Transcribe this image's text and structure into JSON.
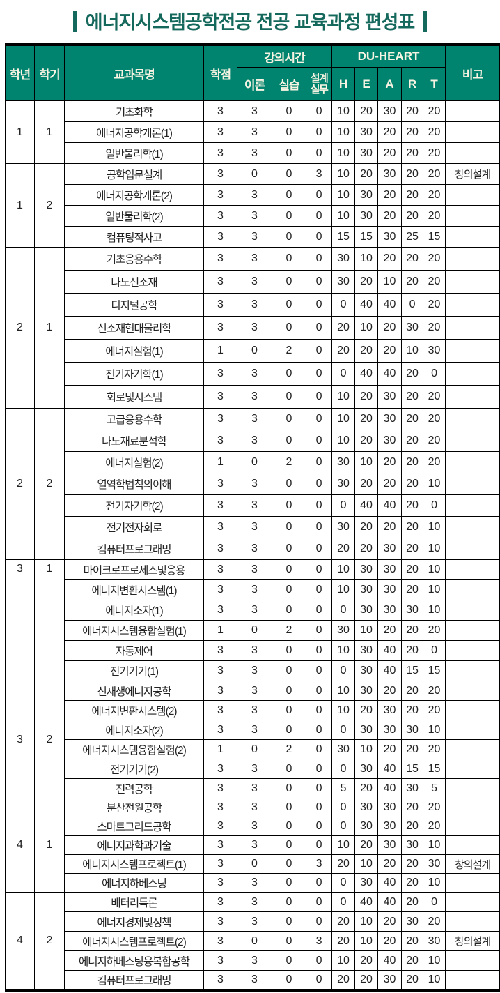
{
  "title": {
    "text": "에너지시스템공학전공 전공 교육과정 편성표"
  },
  "colors": {
    "header_background": "#00836F",
    "title_text": "#15685C",
    "header_text": "#F8F4E3",
    "grid_border": "#000000"
  },
  "table": {
    "headers": {
      "year": "학년",
      "semester": "학기",
      "course_name": "교과목명",
      "credits": "학점",
      "lecture_hours": "강의시간",
      "theory": "이론",
      "practice": "실습",
      "design_line1": "설계",
      "design_line2": "실무",
      "du_heart": "DU-HEART",
      "heart_letters": [
        "H",
        "E",
        "A",
        "R",
        "T"
      ],
      "note": "비고"
    },
    "sections": [
      {
        "year": 1,
        "semester": 1,
        "courses": [
          {
            "name": "기초화학",
            "credits": 3,
            "theory": 3,
            "practice": 0,
            "design": 0,
            "heart": [
              10,
              20,
              30,
              20,
              20
            ],
            "note": ""
          },
          {
            "name": "에너지공학개론(1)",
            "credits": 3,
            "theory": 3,
            "practice": 0,
            "design": 0,
            "heart": [
              10,
              30,
              20,
              20,
              20
            ],
            "note": ""
          },
          {
            "name": "일반물리학(1)",
            "credits": 3,
            "theory": 3,
            "practice": 0,
            "design": 0,
            "heart": [
              10,
              30,
              20,
              20,
              20
            ],
            "note": ""
          }
        ]
      },
      {
        "year": 1,
        "semester": 2,
        "courses": [
          {
            "name": "공학입문설계",
            "credits": 3,
            "theory": 0,
            "practice": 0,
            "design": 3,
            "heart": [
              10,
              20,
              30,
              20,
              20
            ],
            "note": "창의설계"
          },
          {
            "name": "에너지공학개론(2)",
            "credits": 3,
            "theory": 3,
            "practice": 0,
            "design": 0,
            "heart": [
              10,
              30,
              20,
              20,
              20
            ],
            "note": ""
          },
          {
            "name": "일반물리학(2)",
            "credits": 3,
            "theory": 3,
            "practice": 0,
            "design": 0,
            "heart": [
              10,
              30,
              20,
              20,
              20
            ],
            "note": ""
          },
          {
            "name": "컴퓨팅적사고",
            "credits": 3,
            "theory": 3,
            "practice": 0,
            "design": 0,
            "heart": [
              15,
              15,
              30,
              25,
              15
            ],
            "note": ""
          }
        ]
      },
      {
        "year": 2,
        "semester": 1,
        "courses": [
          {
            "name": "기초응용수학",
            "credits": 3,
            "theory": 3,
            "practice": 0,
            "design": 0,
            "heart": [
              30,
              10,
              20,
              20,
              20
            ],
            "note": ""
          },
          {
            "name": "나노신소재",
            "credits": 3,
            "theory": 3,
            "practice": 0,
            "design": 0,
            "heart": [
              30,
              20,
              10,
              20,
              20
            ],
            "note": ""
          },
          {
            "name": "디지털공학",
            "credits": 3,
            "theory": 3,
            "practice": 0,
            "design": 0,
            "heart": [
              0,
              40,
              40,
              0,
              20
            ],
            "note": ""
          },
          {
            "name": "신소재현대물리학",
            "credits": 3,
            "theory": 3,
            "practice": 0,
            "design": 0,
            "heart": [
              20,
              10,
              20,
              30,
              20
            ],
            "note": ""
          },
          {
            "name": "에너지실험(1)",
            "credits": 1,
            "theory": 0,
            "practice": 2,
            "design": 0,
            "heart": [
              20,
              20,
              20,
              10,
              30
            ],
            "note": ""
          },
          {
            "name": "전기자기학(1)",
            "credits": 3,
            "theory": 3,
            "practice": 0,
            "design": 0,
            "heart": [
              0,
              40,
              40,
              20,
              0
            ],
            "note": ""
          },
          {
            "name": "회로및시스템",
            "credits": 3,
            "theory": 3,
            "practice": 0,
            "design": 0,
            "heart": [
              10,
              20,
              30,
              20,
              20
            ],
            "note": ""
          }
        ]
      },
      {
        "year": 2,
        "semester": 2,
        "courses": [
          {
            "name": "고급응용수학",
            "credits": 3,
            "theory": 3,
            "practice": 0,
            "design": 0,
            "heart": [
              10,
              20,
              30,
              20,
              20
            ],
            "note": ""
          },
          {
            "name": "나노재료분석학",
            "credits": 3,
            "theory": 3,
            "practice": 0,
            "design": 0,
            "heart": [
              10,
              20,
              30,
              20,
              20
            ],
            "note": ""
          },
          {
            "name": "에너지실험(2)",
            "credits": 1,
            "theory": 0,
            "practice": 2,
            "design": 0,
            "heart": [
              30,
              10,
              20,
              20,
              20
            ],
            "note": ""
          },
          {
            "name": "열역학법칙의이해",
            "credits": 3,
            "theory": 3,
            "practice": 0,
            "design": 0,
            "heart": [
              30,
              20,
              20,
              20,
              10
            ],
            "note": ""
          },
          {
            "name": "전기자기학(2)",
            "credits": 3,
            "theory": 3,
            "practice": 0,
            "design": 0,
            "heart": [
              0,
              40,
              40,
              20,
              0
            ],
            "note": ""
          },
          {
            "name": "전기전자회로",
            "credits": 3,
            "theory": 3,
            "practice": 0,
            "design": 0,
            "heart": [
              30,
              20,
              20,
              20,
              10
            ],
            "note": ""
          },
          {
            "name": "컴퓨터프로그래밍",
            "credits": 3,
            "theory": 3,
            "practice": 0,
            "design": 0,
            "heart": [
              20,
              20,
              30,
              20,
              10
            ],
            "note": ""
          }
        ]
      },
      {
        "year": 3,
        "semester": 1,
        "courses": [
          {
            "name": "마이크로프로세스및응용",
            "credits": 3,
            "theory": 3,
            "practice": 0,
            "design": 0,
            "heart": [
              10,
              30,
              30,
              20,
              10
            ],
            "note": ""
          },
          {
            "name": "에너지변환시스템(1)",
            "credits": 3,
            "theory": 3,
            "practice": 0,
            "design": 0,
            "heart": [
              10,
              30,
              30,
              20,
              10
            ],
            "note": ""
          },
          {
            "name": "에너지소자(1)",
            "credits": 3,
            "theory": 3,
            "practice": 0,
            "design": 0,
            "heart": [
              0,
              30,
              30,
              30,
              10
            ],
            "note": ""
          },
          {
            "name": "에너지시스템융합실험(1)",
            "credits": 1,
            "theory": 0,
            "practice": 2,
            "design": 0,
            "heart": [
              30,
              10,
              20,
              20,
              20
            ],
            "note": ""
          },
          {
            "name": "자동제어",
            "credits": 3,
            "theory": 3,
            "practice": 0,
            "design": 0,
            "heart": [
              10,
              30,
              40,
              20,
              0
            ],
            "note": ""
          },
          {
            "name": "전기기기(1)",
            "credits": 3,
            "theory": 3,
            "practice": 0,
            "design": 0,
            "heart": [
              0,
              30,
              40,
              15,
              15
            ],
            "note": ""
          }
        ]
      },
      {
        "year": 3,
        "semester": 2,
        "courses": [
          {
            "name": "신재생에너지공학",
            "credits": 3,
            "theory": 3,
            "practice": 0,
            "design": 0,
            "heart": [
              10,
              30,
              20,
              20,
              20
            ],
            "note": ""
          },
          {
            "name": "에너지변환시스템(2)",
            "credits": 3,
            "theory": 3,
            "practice": 0,
            "design": 0,
            "heart": [
              10,
              20,
              30,
              20,
              20
            ],
            "note": ""
          },
          {
            "name": "에너지소자(2)",
            "credits": 3,
            "theory": 3,
            "practice": 0,
            "design": 0,
            "heart": [
              0,
              30,
              30,
              30,
              10
            ],
            "note": ""
          },
          {
            "name": "에너지시스템융합실험(2)",
            "credits": 1,
            "theory": 0,
            "practice": 2,
            "design": 0,
            "heart": [
              30,
              10,
              20,
              20,
              20
            ],
            "note": ""
          },
          {
            "name": "전기기기(2)",
            "credits": 3,
            "theory": 3,
            "practice": 0,
            "design": 0,
            "heart": [
              0,
              30,
              40,
              15,
              15
            ],
            "note": ""
          },
          {
            "name": "전력공학",
            "credits": 3,
            "theory": 3,
            "practice": 0,
            "design": 0,
            "heart": [
              5,
              20,
              40,
              30,
              5
            ],
            "note": ""
          }
        ]
      },
      {
        "year": 4,
        "semester": 1,
        "courses": [
          {
            "name": "분산전원공학",
            "credits": 3,
            "theory": 3,
            "practice": 0,
            "design": 0,
            "heart": [
              0,
              30,
              30,
              20,
              20
            ],
            "note": ""
          },
          {
            "name": "스마트그리드공학",
            "credits": 3,
            "theory": 3,
            "practice": 0,
            "design": 0,
            "heart": [
              0,
              30,
              30,
              20,
              20
            ],
            "note": ""
          },
          {
            "name": "에너지과학과기술",
            "credits": 3,
            "theory": 3,
            "practice": 0,
            "design": 0,
            "heart": [
              10,
              20,
              30,
              30,
              10
            ],
            "note": ""
          },
          {
            "name": "에너지시스템프로젝트(1)",
            "credits": 3,
            "theory": 0,
            "practice": 0,
            "design": 3,
            "heart": [
              20,
              10,
              20,
              20,
              30
            ],
            "note": "창의설계"
          },
          {
            "name": "에너지하베스팅",
            "credits": 3,
            "theory": 3,
            "practice": 0,
            "design": 0,
            "heart": [
              0,
              30,
              40,
              20,
              10
            ],
            "note": ""
          }
        ]
      },
      {
        "year": 4,
        "semester": 2,
        "courses": [
          {
            "name": "배터리특론",
            "credits": 3,
            "theory": 3,
            "practice": 0,
            "design": 0,
            "heart": [
              0,
              40,
              40,
              20,
              0
            ],
            "note": ""
          },
          {
            "name": "에너지경제및정책",
            "credits": 3,
            "theory": 3,
            "practice": 0,
            "design": 0,
            "heart": [
              20,
              10,
              20,
              30,
              20
            ],
            "note": ""
          },
          {
            "name": "에너지시스템프로젝트(2)",
            "credits": 3,
            "theory": 0,
            "practice": 0,
            "design": 3,
            "heart": [
              20,
              10,
              20,
              20,
              30
            ],
            "note": "창의설계"
          },
          {
            "name": "에너지하베스팅융복합공학",
            "credits": 3,
            "theory": 3,
            "practice": 0,
            "design": 0,
            "heart": [
              10,
              20,
              40,
              20,
              10
            ],
            "note": ""
          },
          {
            "name": "컴퓨터프로그래밍",
            "credits": 3,
            "theory": 3,
            "practice": 0,
            "design": 0,
            "heart": [
              20,
              20,
              30,
              20,
              10
            ],
            "note": ""
          }
        ]
      }
    ]
  }
}
